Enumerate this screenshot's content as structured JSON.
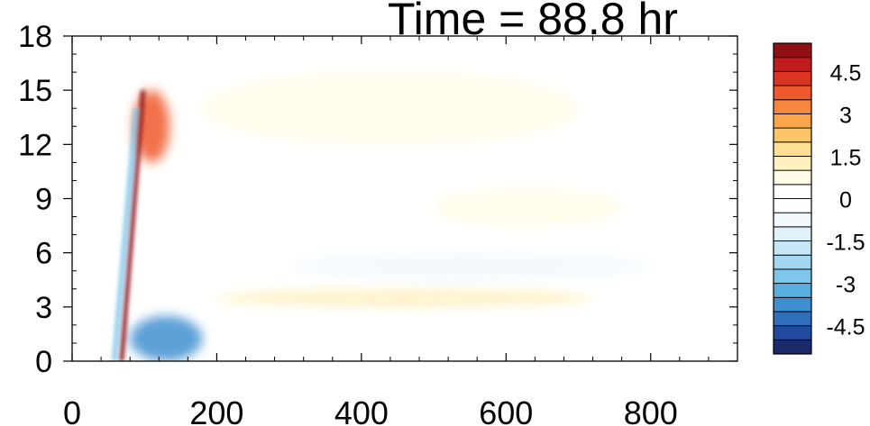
{
  "chart_data": {
    "type": "heatmap",
    "title": "Time = 88.8 hr",
    "xlabel": "",
    "ylabel": "",
    "xlim": [
      0,
      920
    ],
    "ylim": [
      0,
      18
    ],
    "x_ticks": [
      "0",
      "200",
      "400",
      "600",
      "800"
    ],
    "x_tick_values": [
      0,
      200,
      400,
      600,
      800
    ],
    "y_ticks": [
      "0",
      "3",
      "6",
      "9",
      "12",
      "15",
      "18"
    ],
    "y_tick_values": [
      0,
      3,
      6,
      9,
      12,
      15,
      18
    ],
    "colorbar": {
      "levels": [
        -5.5,
        -5,
        -4.5,
        -4,
        -3.5,
        -3,
        -2.5,
        -2,
        -1.5,
        -1,
        -0.5,
        0,
        0.5,
        1,
        1.5,
        2,
        2.5,
        3,
        3.5,
        4,
        4.5,
        5,
        5.5
      ],
      "labels": [
        "4.5",
        "3",
        "1.5",
        "0",
        "-1.5",
        "-3",
        "-4.5"
      ],
      "label_values": [
        4.5,
        3,
        1.5,
        0,
        -1.5,
        -3,
        -4.5
      ],
      "colors": [
        "#1b2a6b",
        "#1f4aa0",
        "#2f6fbd",
        "#3f8fd0",
        "#5aaede",
        "#7ec6ea",
        "#a4d8f0",
        "#c6e6f5",
        "#e0f1fa",
        "#f1f8fc",
        "#ffffff",
        "#ffffff",
        "#fffbe6",
        "#fff0bf",
        "#ffe094",
        "#fdc56a",
        "#fca64b",
        "#f8863a",
        "#ee5a2b",
        "#dc3423",
        "#c01c20",
        "#8e1015"
      ]
    },
    "features": [
      {
        "name": "diagonal-positive-band",
        "x": [
          65,
          95
        ],
        "y": [
          0,
          15
        ],
        "value": 5
      },
      {
        "name": "diagonal-negative-band",
        "x": [
          55,
          85
        ],
        "y": [
          0,
          14
        ],
        "value": -3
      },
      {
        "name": "upper-positive-core",
        "x": [
          85,
          135
        ],
        "y": [
          11,
          15
        ],
        "value": 3.5
      },
      {
        "name": "lower-negative-core",
        "x": [
          80,
          180
        ],
        "y": [
          0,
          2.5
        ],
        "value": -4
      },
      {
        "name": "mid-positive-band",
        "x": [
          200,
          720
        ],
        "y": [
          3,
          4
        ],
        "value": 1
      },
      {
        "name": "mid-negative-band",
        "x": [
          300,
          800
        ],
        "y": [
          4.5,
          6
        ],
        "value": -0.8
      },
      {
        "name": "upper-positive-region",
        "x": [
          180,
          700
        ],
        "y": [
          12,
          16
        ],
        "value": 0.8
      },
      {
        "name": "right-positive-band",
        "x": [
          500,
          760
        ],
        "y": [
          7.5,
          9.5
        ],
        "value": 0.6
      }
    ]
  }
}
